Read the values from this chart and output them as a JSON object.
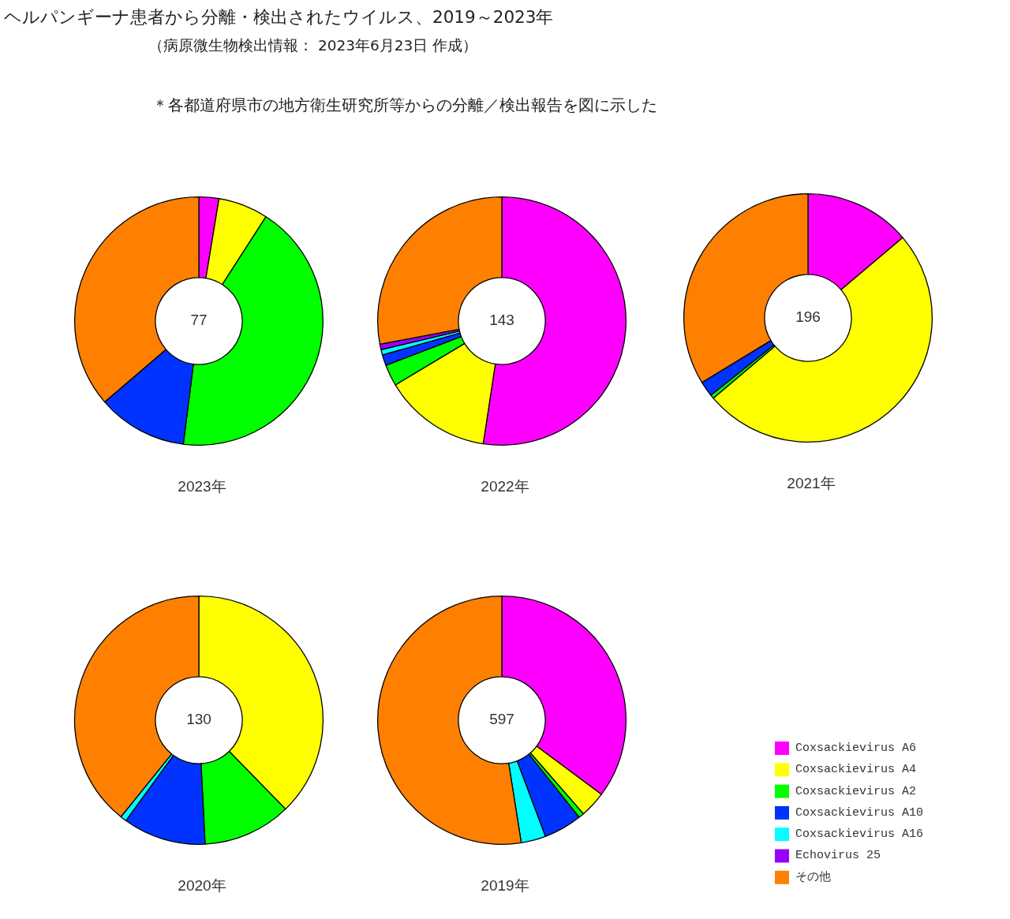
{
  "chart_data": {
    "type": "donut",
    "title": "ヘルパンギーナ患者から分離・検出されたウイルス、2019～2023年",
    "subtitle": "（病原微生物検出情報： 2023年6月23日 作成）",
    "annotations": [
      "＊各都道府県市の地方衛生研究所等からの分離／検出報告を図に示した",
      "77",
      "143",
      "196",
      "130",
      "597"
    ],
    "categories": [
      "Coxsackievirus A6",
      "Coxsackievirus A4",
      "Coxsackievirus A2",
      "Coxsackievirus A10",
      "Coxsackievirus A16",
      "Echovirus 25",
      "その他"
    ],
    "colors": [
      "#ff00ff",
      "#ffff00",
      "#00ff00",
      "#0033ff",
      "#00ffff",
      "#9900ff",
      "#ff8000"
    ],
    "legend": "bottom right",
    "series": [
      {
        "name": "2023年",
        "values": [
          2.6,
          6.5,
          42.9,
          11.7,
          0,
          0,
          36.3
        ]
      },
      {
        "name": "2022年",
        "values": [
          52.4,
          14.0,
          2.8,
          1.4,
          0.7,
          0.7,
          28.0
        ]
      },
      {
        "name": "2021年",
        "values": [
          13.8,
          50.0,
          0.5,
          2.0,
          0,
          0,
          33.7
        ]
      },
      {
        "name": "2020年",
        "values": [
          0,
          37.7,
          11.5,
          10.8,
          0.8,
          0,
          39.2
        ]
      },
      {
        "name": "2019年",
        "values": [
          35.2,
          3.4,
          0.7,
          5.0,
          3.2,
          0,
          52.5
        ]
      }
    ]
  }
}
